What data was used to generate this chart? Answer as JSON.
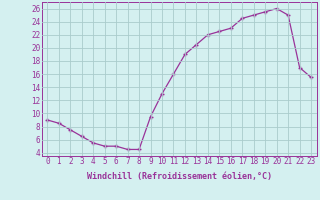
{
  "x": [
    0,
    1,
    2,
    3,
    4,
    5,
    6,
    7,
    8,
    9,
    10,
    11,
    12,
    13,
    14,
    15,
    16,
    17,
    18,
    19,
    20,
    21,
    22,
    23
  ],
  "y": [
    9.0,
    8.5,
    7.5,
    6.5,
    5.5,
    5.0,
    5.0,
    4.5,
    4.5,
    9.5,
    13.0,
    16.0,
    19.0,
    20.5,
    22.0,
    22.5,
    23.0,
    24.5,
    25.0,
    25.5,
    26.0,
    25.0,
    17.0,
    15.5
  ],
  "line_color": "#993399",
  "marker": "+",
  "bg_color": "#d4f0f0",
  "grid_color": "#aacccc",
  "xlabel": "Windchill (Refroidissement éolien,°C)",
  "ylim": [
    3.5,
    27
  ],
  "xlim": [
    -0.5,
    23.5
  ],
  "yticks": [
    4,
    6,
    8,
    10,
    12,
    14,
    16,
    18,
    20,
    22,
    24,
    26
  ],
  "xticks": [
    0,
    1,
    2,
    3,
    4,
    5,
    6,
    7,
    8,
    9,
    10,
    11,
    12,
    13,
    14,
    15,
    16,
    17,
    18,
    19,
    20,
    21,
    22,
    23
  ],
  "tick_fontsize": 5.5,
  "xlabel_fontsize": 6.0
}
